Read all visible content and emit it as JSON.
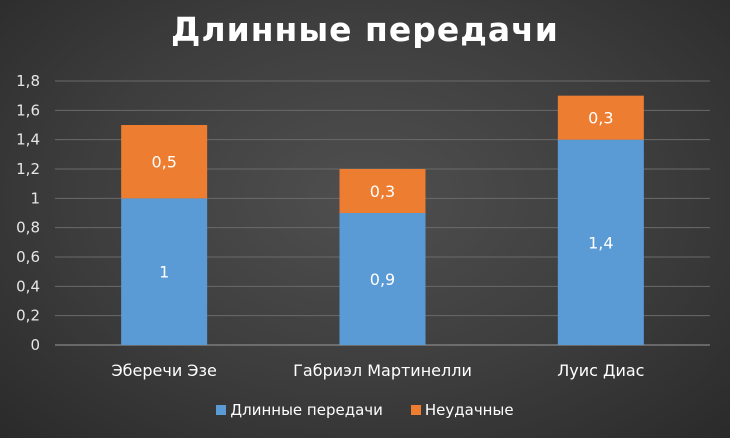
{
  "chart_data": {
    "type": "bar",
    "stacked": true,
    "title": "Длинные передачи",
    "categories": [
      "Эберечи Эзе",
      "Габриэл Мартинелли",
      "Луис Диас"
    ],
    "series": [
      {
        "name": "Длинные передачи",
        "values": [
          1,
          0.9,
          1.4
        ],
        "labels": [
          "1",
          "0,9",
          "1,4"
        ],
        "color": "#5b9bd5"
      },
      {
        "name": "Неудачные",
        "values": [
          0.5,
          0.3,
          0.3
        ],
        "labels": [
          "0,5",
          "0,3",
          "0,3"
        ],
        "color": "#ed7d31"
      }
    ],
    "ylim": [
      0,
      1.8
    ],
    "yticks": [
      "0",
      "0,2",
      "0,4",
      "0,6",
      "0,8",
      "1",
      "1,2",
      "1,4",
      "1,6",
      "1,8"
    ],
    "grid": true,
    "legend_position": "bottom"
  }
}
